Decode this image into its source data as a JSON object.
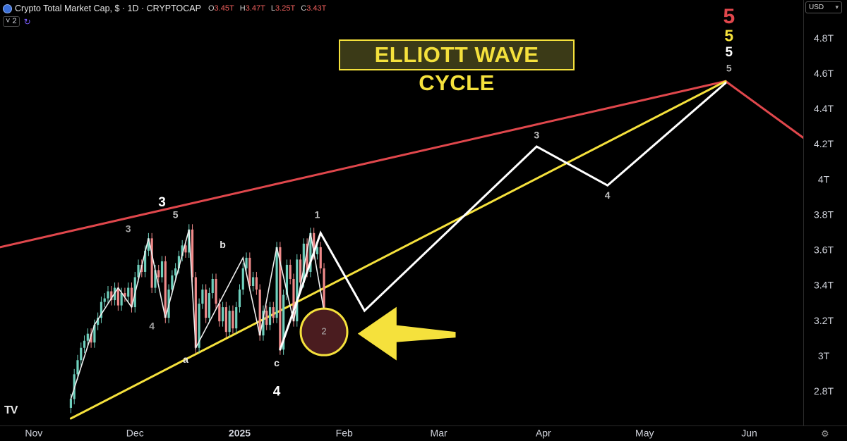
{
  "header": {
    "title": "Crypto Total Market Cap, $ · 1D · CRYPTOCAP",
    "ohlc": [
      {
        "key": "O",
        "value": "3.45T"
      },
      {
        "key": "H",
        "value": "3.47T"
      },
      {
        "key": "L",
        "value": "3.25T"
      },
      {
        "key": "C",
        "value": "3.43T"
      }
    ],
    "collapse_badge": "˅ 2"
  },
  "currency": "USD",
  "colors": {
    "background": "#000000",
    "red_line": "#e0474c",
    "yellow_line": "#f5e13c",
    "white_path": "#ffffff",
    "candle_up": "#6fd0bd",
    "candle_down": "#f08a8a",
    "target_circle_fill": "#4a1c1f",
    "arrow": "#f5e13c"
  },
  "chart_data": {
    "type": "line",
    "title": "ELLIOTT WAVE CYCLE",
    "x_tick_labels": [
      "Nov",
      "Dec",
      "2025",
      "Feb",
      "Mar",
      "Apr",
      "May",
      "Jun"
    ],
    "x_ticks": [
      "2024-11-01",
      "2024-12-01",
      "2025-01-01",
      "2025-02-01",
      "2025-03-01",
      "2025-04-01",
      "2025-05-01",
      "2025-06-01"
    ],
    "y_ticks": [
      2.8,
      3.0,
      3.2,
      3.4,
      3.6,
      3.8,
      4.0,
      4.2,
      4.4,
      4.6,
      4.8
    ],
    "y_tick_labels": [
      "2.8T",
      "3T",
      "3.2T",
      "3.4T",
      "3.6T",
      "3.8T",
      "4T",
      "4.2T",
      "4.4T",
      "4.6T",
      "4.8T"
    ],
    "ylim": [
      2.61,
      5.02
    ],
    "xlim": [
      "2024-10-22",
      "2025-06-17"
    ],
    "series": [
      {
        "type": "line",
        "style": "red",
        "points": [
          [
            "2024-10-22",
            3.62
          ],
          [
            "2025-05-25",
            4.56
          ],
          [
            "2025-06-17",
            4.24
          ]
        ]
      },
      {
        "type": "line",
        "style": "yellow",
        "points": [
          [
            "2024-11-12",
            2.65
          ],
          [
            "2025-05-25",
            4.56
          ]
        ]
      },
      {
        "type": "line",
        "style": "white",
        "points": [
          [
            "2025-01-13",
            3.04
          ],
          [
            "2025-01-25",
            3.7
          ],
          [
            "2025-02-07",
            3.26
          ],
          [
            "2025-03-30",
            4.19
          ],
          [
            "2025-04-20",
            3.97
          ],
          [
            "2025-05-25",
            4.55
          ]
        ]
      },
      {
        "type": "line",
        "style": "white-thin",
        "points": [
          [
            "2024-11-12",
            2.76
          ],
          [
            "2024-11-19",
            3.18
          ],
          [
            "2024-11-26",
            3.39
          ],
          [
            "2024-11-30",
            3.28
          ],
          [
            "2024-12-05",
            3.67
          ],
          [
            "2024-12-10",
            3.22
          ],
          [
            "2024-12-17",
            3.72
          ],
          [
            "2024-12-19",
            3.05
          ],
          [
            "2025-01-02",
            3.56
          ],
          [
            "2025-01-07",
            3.12
          ],
          [
            "2025-01-12",
            3.62
          ],
          [
            "2025-01-17",
            3.2
          ],
          [
            "2025-01-22",
            3.7
          ],
          [
            "2025-01-26",
            3.26
          ]
        ]
      },
      {
        "type": "candles",
        "style": "candle",
        "closes": [
          [
            "2024-11-12",
            2.76
          ],
          [
            "2024-11-13",
            2.9
          ],
          [
            "2024-11-14",
            2.98
          ],
          [
            "2024-11-15",
            3.05
          ],
          [
            "2024-11-16",
            3.09
          ],
          [
            "2024-11-17",
            3.13
          ],
          [
            "2024-11-18",
            3.08
          ],
          [
            "2024-11-19",
            3.18
          ],
          [
            "2024-11-20",
            3.22
          ],
          [
            "2024-11-21",
            3.31
          ],
          [
            "2024-11-22",
            3.33
          ],
          [
            "2024-11-23",
            3.37
          ],
          [
            "2024-11-24",
            3.32
          ],
          [
            "2024-11-25",
            3.39
          ],
          [
            "2024-11-26",
            3.29
          ],
          [
            "2024-11-27",
            3.36
          ],
          [
            "2024-11-28",
            3.34
          ],
          [
            "2024-11-29",
            3.39
          ],
          [
            "2024-11-30",
            3.28
          ],
          [
            "2024-12-01",
            3.45
          ],
          [
            "2024-12-02",
            3.52
          ],
          [
            "2024-12-03",
            3.48
          ],
          [
            "2024-12-04",
            3.6
          ],
          [
            "2024-12-05",
            3.67
          ],
          [
            "2024-12-06",
            3.39
          ],
          [
            "2024-12-07",
            3.49
          ],
          [
            "2024-12-08",
            3.45
          ],
          [
            "2024-12-09",
            3.54
          ],
          [
            "2024-12-10",
            3.22
          ],
          [
            "2024-12-11",
            3.38
          ],
          [
            "2024-12-12",
            3.46
          ],
          [
            "2024-12-13",
            3.5
          ],
          [
            "2024-12-14",
            3.57
          ],
          [
            "2024-12-15",
            3.63
          ],
          [
            "2024-12-16",
            3.59
          ],
          [
            "2024-12-17",
            3.72
          ],
          [
            "2024-12-18",
            3.45
          ],
          [
            "2024-12-19",
            3.05
          ],
          [
            "2024-12-20",
            3.3
          ],
          [
            "2024-12-21",
            3.38
          ],
          [
            "2024-12-22",
            3.22
          ],
          [
            "2024-12-23",
            3.36
          ],
          [
            "2024-12-24",
            3.44
          ],
          [
            "2024-12-25",
            3.3
          ],
          [
            "2024-12-26",
            3.2
          ],
          [
            "2024-12-27",
            3.28
          ],
          [
            "2024-12-28",
            3.14
          ],
          [
            "2024-12-29",
            3.26
          ],
          [
            "2024-12-30",
            3.16
          ],
          [
            "2024-12-31",
            3.28
          ],
          [
            "2025-01-01",
            3.38
          ],
          [
            "2025-01-02",
            3.5
          ],
          [
            "2025-01-03",
            3.56
          ],
          [
            "2025-01-04",
            3.4
          ],
          [
            "2025-01-05",
            3.45
          ],
          [
            "2025-01-06",
            3.38
          ],
          [
            "2025-01-07",
            3.12
          ],
          [
            "2025-01-08",
            3.26
          ],
          [
            "2025-01-09",
            3.18
          ],
          [
            "2025-01-10",
            3.28
          ],
          [
            "2025-01-11",
            3.22
          ],
          [
            "2025-01-12",
            3.62
          ],
          [
            "2025-01-13",
            3.04
          ],
          [
            "2025-01-14",
            3.35
          ],
          [
            "2025-01-15",
            3.52
          ],
          [
            "2025-01-16",
            3.44
          ],
          [
            "2025-01-17",
            3.2
          ],
          [
            "2025-01-18",
            3.55
          ],
          [
            "2025-01-19",
            3.42
          ],
          [
            "2025-01-20",
            3.64
          ],
          [
            "2025-01-21",
            3.48
          ],
          [
            "2025-01-22",
            3.7
          ],
          [
            "2025-01-23",
            3.58
          ],
          [
            "2025-01-24",
            3.62
          ],
          [
            "2025-01-25",
            3.5
          ],
          [
            "2025-01-26",
            3.26
          ]
        ]
      }
    ],
    "annotations": [
      {
        "text": "5",
        "x": "2025-05-26",
        "y": 4.92,
        "color": "#e0474c",
        "size": "xl"
      },
      {
        "text": "5",
        "x": "2025-05-26",
        "y": 4.81,
        "color": "#f5e13c",
        "size": "lg"
      },
      {
        "text": "5",
        "x": "2025-05-26",
        "y": 4.72,
        "color": "#ffffff",
        "size": "md"
      },
      {
        "text": "5",
        "x": "2025-05-26",
        "y": 4.63,
        "color": "#b0b0b0",
        "size": "sm"
      },
      {
        "text": "3",
        "x": "2024-12-09",
        "y": 3.87,
        "color": "#ffffff",
        "size": "md"
      },
      {
        "text": "3",
        "x": "2024-11-29",
        "y": 3.72,
        "color": "#a0a0a0",
        "size": "sm"
      },
      {
        "text": "5",
        "x": "2024-12-13",
        "y": 3.8,
        "color": "#c0c0c0",
        "size": "sm"
      },
      {
        "text": "b",
        "x": "2024-12-27",
        "y": 3.63,
        "color": "#e8e8e8",
        "size": "sm"
      },
      {
        "text": "1",
        "x": "2025-01-24",
        "y": 3.8,
        "color": "#c0c0c0",
        "size": "sm"
      },
      {
        "text": "4",
        "x": "2024-12-06",
        "y": 3.17,
        "color": "#a0a0a0",
        "size": "sm"
      },
      {
        "text": "a",
        "x": "2024-12-16",
        "y": 2.98,
        "color": "#e8e8e8",
        "size": "sm"
      },
      {
        "text": "c",
        "x": "2025-01-12",
        "y": 2.96,
        "color": "#e8e8e8",
        "size": "sm"
      },
      {
        "text": "4",
        "x": "2025-01-12",
        "y": 2.8,
        "color": "#ffffff",
        "size": "md"
      },
      {
        "text": "3",
        "x": "2025-03-30",
        "y": 4.25,
        "color": "#c0c0c0",
        "size": "sm"
      },
      {
        "text": "4",
        "x": "2025-04-20",
        "y": 3.91,
        "color": "#c0c0c0",
        "size": "sm"
      },
      {
        "text": "2",
        "x": "2025-01-26",
        "y": 3.14,
        "color": "#b0b0b0",
        "size": "circle"
      }
    ],
    "arrow": {
      "from": [
        "2025-03-06",
        3.12
      ],
      "to": [
        "2025-02-05",
        3.13
      ]
    }
  }
}
